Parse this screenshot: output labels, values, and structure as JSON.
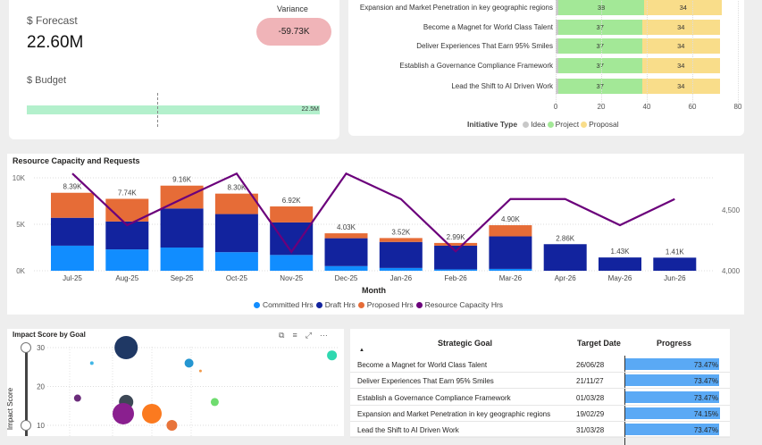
{
  "kpi": {
    "forecast_label": "$ Forecast",
    "forecast_value": "22.60M",
    "variance_label": "Variance",
    "variance_value": "-59.73K",
    "budget_label": "$ Budget",
    "budget_bar_label": "22.5M",
    "colors": {
      "variance_bg": "#f0b4b8",
      "budget_bar": "#b3f0cc"
    }
  },
  "initiative_chart": {
    "type": "bar",
    "orientation": "horizontal-stacked",
    "categories": [
      "Expansion and Market Penetration in key geographic regions",
      "Become a Magnet for World Class Talent",
      "Deliver Experiences That Earn 95% Smiles",
      "Establish a Governance Compliance Framework",
      "Lead the Shift to AI Driven Work"
    ],
    "series": [
      {
        "name": "Idea",
        "values": [
          1,
          1,
          1,
          1,
          1
        ],
        "color": "#c8c8c8"
      },
      {
        "name": "Project",
        "values": [
          38,
          37,
          37,
          37,
          37
        ],
        "color": "#a3e897"
      },
      {
        "name": "Proposal",
        "values": [
          34,
          34,
          34,
          34,
          34
        ],
        "color": "#f9dd8a"
      }
    ],
    "x_ticks": [
      "0",
      "20",
      "40",
      "60",
      "80"
    ],
    "xlim": [
      0,
      80
    ],
    "legend_title": "Initiative Type"
  },
  "chart_data": {
    "type": "bar",
    "title": "Resource Capacity and Requests",
    "xlabel": "Month",
    "categories": [
      "Jul-25",
      "Aug-25",
      "Sep-25",
      "Oct-25",
      "Nov-25",
      "Dec-25",
      "Jan-26",
      "Feb-26",
      "Mar-26",
      "Apr-26",
      "May-26",
      "Jun-26"
    ],
    "series": [
      {
        "name": "Committed Hrs",
        "values": [
          2700,
          2300,
          2500,
          2000,
          1700,
          500,
          300,
          150,
          200,
          0,
          0,
          0
        ],
        "color": "#118dff"
      },
      {
        "name": "Draft Hrs",
        "values": [
          3000,
          3000,
          4200,
          4100,
          3500,
          3000,
          2800,
          2550,
          3500,
          2860,
          1430,
          1410
        ],
        "color": "#12239e"
      },
      {
        "name": "Proposed Hrs",
        "values": [
          2690,
          2440,
          2460,
          2200,
          1720,
          530,
          420,
          290,
          1200,
          0,
          0,
          0
        ],
        "color": "#e66c37"
      },
      {
        "name": "Resource Capacity Hrs",
        "type": "line",
        "axis": "right",
        "values": [
          4800,
          4375,
          4590,
          4800,
          4155,
          4800,
          4590,
          4160,
          4590,
          4590,
          4375,
          4590
        ],
        "color": "#6b007b"
      }
    ],
    "totals": [
      "8.39K",
      "7.74K",
      "9.16K",
      "8.30K",
      "6.92K",
      "4.03K",
      "3.52K",
      "2.99K",
      "4.90K",
      "2.86K",
      "1.43K",
      "1.41K"
    ],
    "y_ticks": [
      "0K",
      "5K",
      "10K"
    ],
    "ylim": [
      0,
      10000
    ],
    "y2_ticks": [
      "4,000",
      "4,500"
    ],
    "y2lim": [
      4000,
      4500
    ],
    "grid": true,
    "legend": "bottom"
  },
  "scatter": {
    "title": "Impact Score by Goal",
    "ylabel": "Impact Score",
    "y_ticks": [
      "30",
      "20",
      "10"
    ],
    "ylim": [
      10,
      30
    ],
    "points": [
      {
        "x": 26,
        "y": 30,
        "r": 13,
        "color": "#1f3864"
      },
      {
        "x": 14,
        "y": 26,
        "r": 2,
        "color": "#41b6e6"
      },
      {
        "x": 48,
        "y": 26,
        "r": 5,
        "color": "#2596d1"
      },
      {
        "x": 52,
        "y": 24,
        "r": 1.5,
        "color": "#f2994a"
      },
      {
        "x": 98,
        "y": 28,
        "r": 5.5,
        "color": "#2fd8b0"
      },
      {
        "x": 9,
        "y": 17,
        "r": 4,
        "color": "#6b2c7b"
      },
      {
        "x": 26,
        "y": 16,
        "r": 8,
        "color": "#3d4856"
      },
      {
        "x": 57,
        "y": 16,
        "r": 4.5,
        "color": "#6fdc6f"
      },
      {
        "x": 25,
        "y": 13,
        "r": 12,
        "color": "#8a1f8f"
      },
      {
        "x": 35,
        "y": 13,
        "r": 11,
        "color": "#fb7a1f"
      },
      {
        "x": 42,
        "y": 10,
        "r": 6,
        "color": "#e8743b"
      }
    ],
    "toolbar_icons": [
      "copy-icon",
      "filter-icon",
      "focus-mode-icon",
      "more-options-icon"
    ]
  },
  "goals_table": {
    "columns": [
      "Strategic Goal",
      "Target Date",
      "Progress"
    ],
    "sort_indicator": "▲",
    "rows": [
      {
        "goal": "Become a Magnet for World Class Talent",
        "date": "26/06/28",
        "progress": "73.47%",
        "value": 73.47
      },
      {
        "goal": "Deliver Experiences That Earn 95% Smiles",
        "date": "21/11/27",
        "progress": "73.47%",
        "value": 73.47
      },
      {
        "goal": "Establish a Governance Compliance Framework",
        "date": "01/03/28",
        "progress": "73.47%",
        "value": 73.47
      },
      {
        "goal": "Expansion and Market Penetration in key geographic regions",
        "date": "19/02/29",
        "progress": "74.15%",
        "value": 74.15
      },
      {
        "goal": "Lead the Shift to AI Driven Work",
        "date": "31/03/28",
        "progress": "73.47%",
        "value": 73.47
      }
    ],
    "bar_color": "#5aa9f5"
  }
}
